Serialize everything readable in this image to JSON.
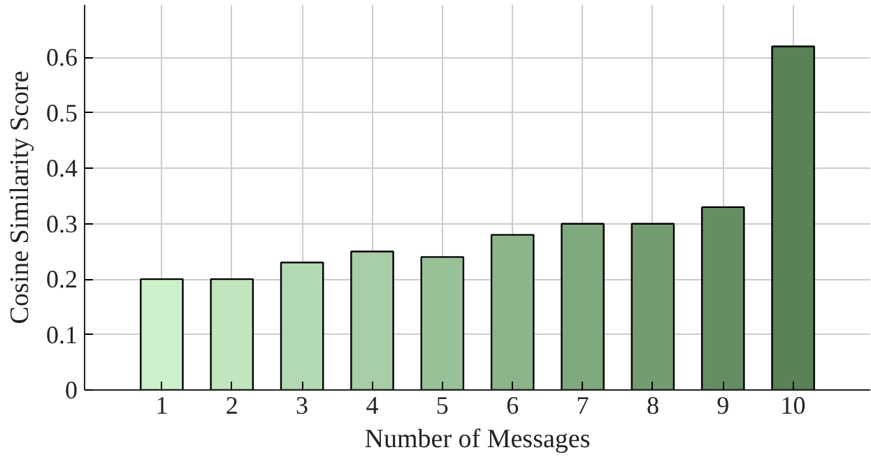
{
  "chart_data": {
    "type": "bar",
    "xlabel": "Number of Messages",
    "ylabel": "Cosine Similarity Score",
    "x": [
      1,
      2,
      3,
      4,
      5,
      6,
      7,
      8,
      9,
      10
    ],
    "values": [
      0.2,
      0.2,
      0.23,
      0.25,
      0.24,
      0.28,
      0.3,
      0.3,
      0.33,
      0.62
    ],
    "colors": [
      "#cdf0cc",
      "#c0e5bf",
      "#b3d9b2",
      "#a6cda5",
      "#99c198",
      "#8cb48b",
      "#80a87e",
      "#739b72",
      "#668e65",
      "#5a8158"
    ],
    "xlim": [
      -0.1,
      11.1
    ],
    "ylim": [
      0,
      0.695
    ],
    "xticks": [
      1,
      2,
      3,
      4,
      5,
      6,
      7,
      8,
      9,
      10
    ],
    "yticks": [
      0,
      0.1,
      0.2,
      0.3,
      0.4,
      0.5,
      0.6
    ],
    "grid": true
  }
}
